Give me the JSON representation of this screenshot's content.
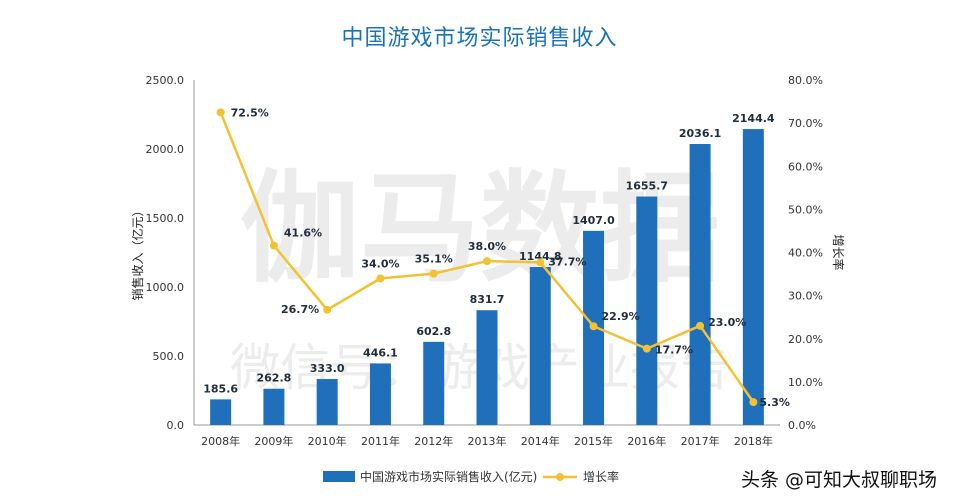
{
  "chart_data": {
    "type": "bar",
    "title": "中国游戏市场实际销售收入",
    "categories": [
      "2008年",
      "2009年",
      "2010年",
      "2011年",
      "2012年",
      "2013年",
      "2014年",
      "2015年",
      "2016年",
      "2017年",
      "2018年"
    ],
    "series": [
      {
        "name": "中国游戏市场实际销售收入(亿元)",
        "type": "bar",
        "axis": "left",
        "values": [
          185.6,
          262.8,
          333.0,
          446.1,
          602.8,
          831.7,
          1144.8,
          1407.0,
          1655.7,
          2036.1,
          2144.4
        ],
        "labels": [
          "185.6",
          "262.8",
          "333.0",
          "446.1",
          "602.8",
          "831.7",
          "1144.8",
          "1407.0",
          "1655.7",
          "2036.1",
          "2144.4"
        ]
      },
      {
        "name": "增长率",
        "type": "line",
        "axis": "right",
        "values": [
          72.5,
          41.6,
          26.7,
          34.0,
          35.1,
          38.0,
          37.7,
          22.9,
          17.7,
          23.0,
          5.3
        ],
        "labels": [
          "72.5%",
          "41.6%",
          "26.7%",
          "34.0%",
          "35.1%",
          "38.0%",
          "37.7%",
          "22.9%",
          "17.7%",
          "23.0%",
          "5.3%"
        ]
      }
    ],
    "ylabel": "销售收入（亿元）",
    "y2label": "增长率",
    "ylim": [
      0,
      2500
    ],
    "y2lim": [
      0,
      80
    ],
    "yticks": [
      "0.0",
      "500.0",
      "1000.0",
      "1500.0",
      "2000.0",
      "2500.0"
    ],
    "y2ticks": [
      "0.0%",
      "10.0%",
      "20.0%",
      "30.0%",
      "40.0%",
      "50.0%",
      "60.0%",
      "70.0%",
      "80.0%"
    ],
    "legend_position": "bottom",
    "grid": false,
    "colors": {
      "bar": "#1f6fba",
      "line": "#f2c232"
    }
  },
  "watermark": {
    "main": "伽马数据",
    "sub": "微信号：游戏产业报告"
  },
  "credit": "头条 @可知大叔聊职场"
}
